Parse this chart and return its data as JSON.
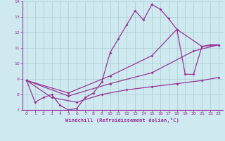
{
  "xlabel": "Windchill (Refroidissement éolien,°C)",
  "background_color": "#ceeaf0",
  "grid_color": "#aacccc",
  "line_color": "#993399",
  "spine_color": "#993399",
  "xlim": [
    -0.5,
    23.5
  ],
  "ylim": [
    7.0,
    14.0
  ],
  "yticks": [
    7,
    8,
    9,
    10,
    11,
    12,
    13,
    14
  ],
  "xticks": [
    0,
    1,
    2,
    3,
    4,
    5,
    6,
    7,
    8,
    9,
    10,
    11,
    12,
    13,
    14,
    15,
    16,
    17,
    18,
    19,
    20,
    21,
    22,
    23
  ],
  "series": [
    {
      "x": [
        0,
        1,
        2,
        3,
        4,
        5,
        6,
        7,
        8,
        9,
        10,
        11,
        12,
        13,
        14,
        15,
        16,
        17,
        18,
        19,
        20,
        21,
        22,
        23
      ],
      "y": [
        8.9,
        7.5,
        7.8,
        8.0,
        7.3,
        7.0,
        7.1,
        7.8,
        8.1,
        8.8,
        10.7,
        11.6,
        12.5,
        13.4,
        12.8,
        13.8,
        13.5,
        12.9,
        12.2,
        9.3,
        9.3,
        11.1,
        11.2,
        11.2
      ]
    },
    {
      "x": [
        0,
        3,
        6,
        9,
        12,
        15,
        18,
        21,
        23
      ],
      "y": [
        8.9,
        7.8,
        7.5,
        8.0,
        8.3,
        8.5,
        8.7,
        8.9,
        9.1
      ]
    },
    {
      "x": [
        0,
        5,
        10,
        15,
        20,
        23
      ],
      "y": [
        8.9,
        7.9,
        8.7,
        9.4,
        10.8,
        11.2
      ]
    },
    {
      "x": [
        0,
        5,
        10,
        15,
        18,
        21,
        23
      ],
      "y": [
        8.9,
        8.1,
        9.2,
        10.5,
        12.2,
        11.1,
        11.2
      ]
    }
  ]
}
